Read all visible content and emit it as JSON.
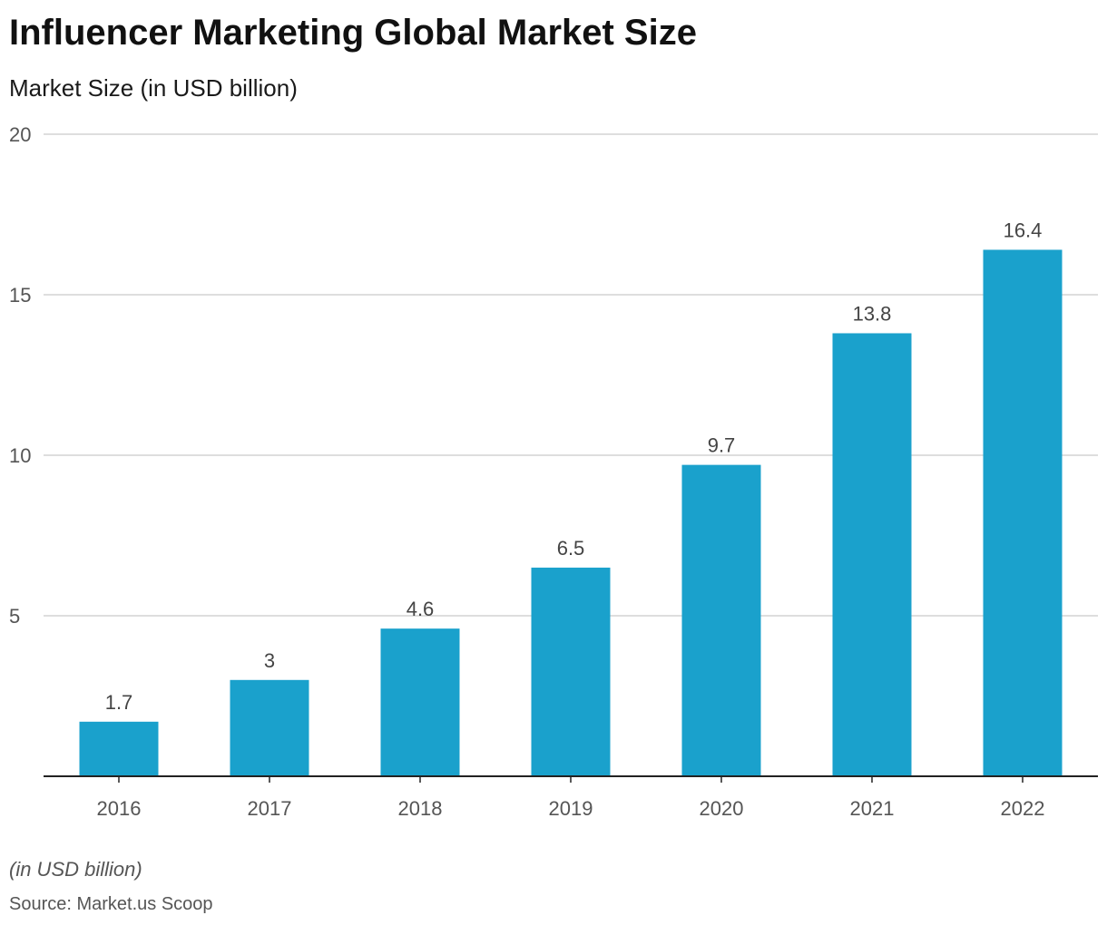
{
  "header": {
    "title": "Influencer Marketing Global Market Size",
    "subtitle": "Market Size (in USD billion)"
  },
  "footer": {
    "note": "(in USD billion)",
    "source": "Source: Market.us Scoop"
  },
  "colors": {
    "bar": "#1aa1cc",
    "grid": "#d4d4d4",
    "axis": "#222222"
  },
  "chart_data": {
    "type": "bar",
    "categories": [
      "2016",
      "2017",
      "2018",
      "2019",
      "2020",
      "2021",
      "2022"
    ],
    "values": [
      1.7,
      3,
      4.6,
      6.5,
      9.7,
      13.8,
      16.4
    ],
    "data_labels": [
      "1.7",
      "3",
      "4.6",
      "6.5",
      "9.7",
      "13.8",
      "16.4"
    ],
    "title": "Influencer Marketing Global Market Size",
    "subtitle": "Market Size (in USD billion)",
    "ylim": [
      0,
      20
    ],
    "yticks": [
      5,
      10,
      15,
      20
    ],
    "ytick_labels": [
      "5",
      "10",
      "15",
      "20"
    ],
    "grid": true,
    "legend": "none"
  }
}
